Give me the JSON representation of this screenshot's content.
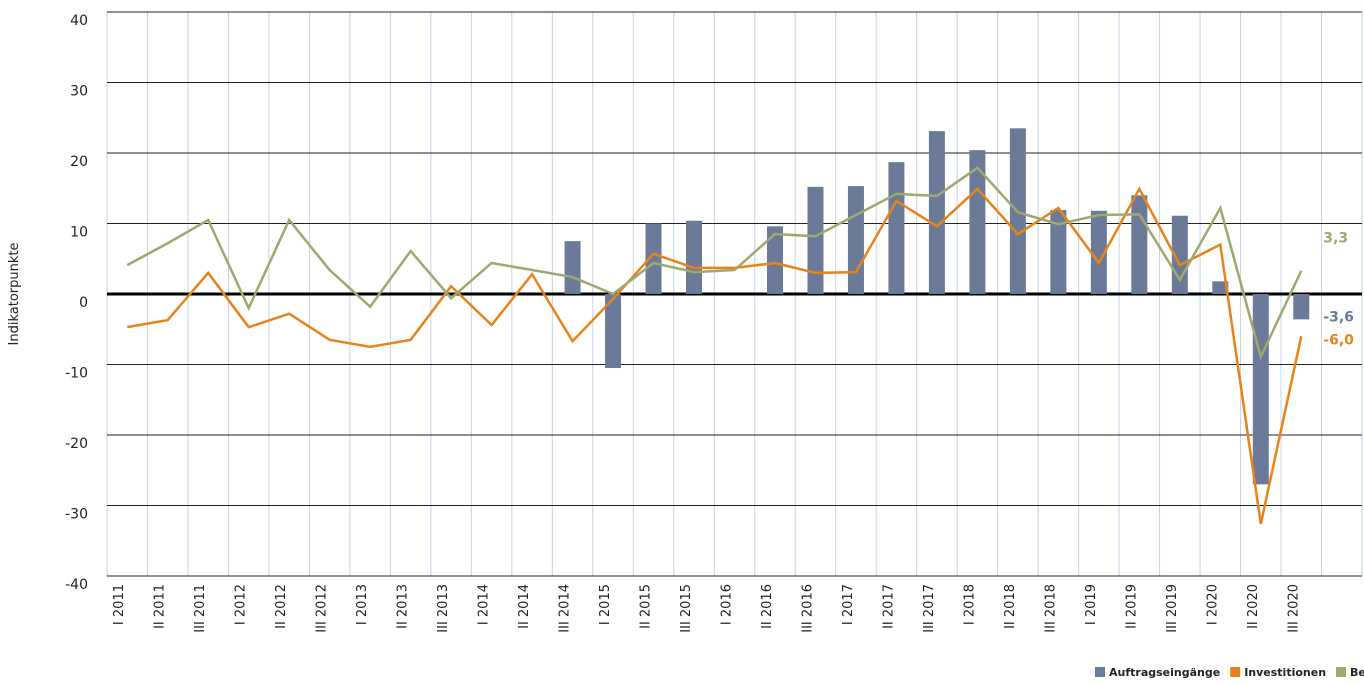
{
  "chart_data": {
    "type": "bar-line",
    "y_label": "Indikatorpunkte",
    "categories": [
      "I 2011",
      "II 2011",
      "III 2011",
      "I 2012",
      "II 2012",
      "III 2012",
      "I 2013",
      "II 2013",
      "III 2013",
      "I 2014",
      "II 2014",
      "III 2014",
      "I 2015",
      "II 2015",
      "III 2015",
      "I 2016",
      "II 2016",
      "III 2016",
      "I 2017",
      "II 2017",
      "III 2017",
      "I 2018",
      "II 2018",
      "III 2018",
      "I 2019",
      "II 2019",
      "III 2019",
      "I 2020",
      "II 2020",
      "III 2020"
    ],
    "series": [
      {
        "name": "Auftragseingänge",
        "type": "bar",
        "color": "#6b7a99",
        "values": [
          null,
          null,
          null,
          null,
          null,
          null,
          null,
          null,
          null,
          null,
          null,
          7.5,
          -10.5,
          10,
          10.4,
          null,
          9.6,
          15.2,
          15.3,
          18.7,
          23.1,
          20.4,
          23.5,
          11.9,
          11.8,
          14,
          11.1,
          1.8,
          -27,
          -3.6
        ],
        "value_labels": [
          null,
          null,
          null,
          null,
          null,
          null,
          null,
          null,
          null,
          null,
          null,
          null,
          null,
          null,
          null,
          null,
          null,
          null,
          null,
          null,
          null,
          null,
          null,
          null,
          null,
          null,
          null,
          null,
          null,
          "-3,6"
        ]
      },
      {
        "name": "Investitionen",
        "type": "line",
        "color": "#e8831a",
        "values": [
          -4.7,
          -3.7,
          3,
          -4.7,
          -2.8,
          -6.5,
          -7.5,
          -6.5,
          1.1,
          -4.4,
          2.8,
          -6.7,
          -0.7,
          5.7,
          3.7,
          3.7,
          4.4,
          3,
          3.1,
          13.2,
          9.6,
          14.9,
          8.5,
          12.2,
          4.4,
          14.9,
          4.1,
          7,
          -32.6,
          -6
        ],
        "value_labels": [
          null,
          null,
          null,
          null,
          null,
          null,
          null,
          null,
          null,
          null,
          null,
          null,
          null,
          null,
          null,
          null,
          null,
          null,
          null,
          null,
          null,
          null,
          null,
          null,
          null,
          null,
          null,
          null,
          null,
          "-6,0"
        ]
      },
      {
        "name": "Beschäftigung",
        "type": "line",
        "color": "#9fa86e",
        "values": [
          4.1,
          7.2,
          10.5,
          -2,
          10.5,
          3.4,
          -1.8,
          6.1,
          -0.6,
          4.4,
          3.4,
          2.4,
          0,
          4.4,
          3.1,
          3.4,
          8.5,
          8.2,
          11.2,
          14.2,
          13.9,
          17.9,
          11.6,
          9.9,
          11.2,
          11.3,
          2,
          12.2,
          -8.9,
          3.3
        ],
        "value_labels": [
          null,
          null,
          null,
          null,
          null,
          null,
          null,
          null,
          null,
          null,
          null,
          null,
          null,
          null,
          null,
          null,
          null,
          null,
          null,
          null,
          null,
          null,
          null,
          null,
          null,
          null,
          null,
          null,
          null,
          "3,3"
        ]
      }
    ],
    "ylim": [
      -40,
      40
    ],
    "yticks": [
      -40,
      -30,
      -20,
      -10,
      0,
      10,
      20,
      30,
      40
    ],
    "grid": true,
    "legend": "bottom-right"
  }
}
